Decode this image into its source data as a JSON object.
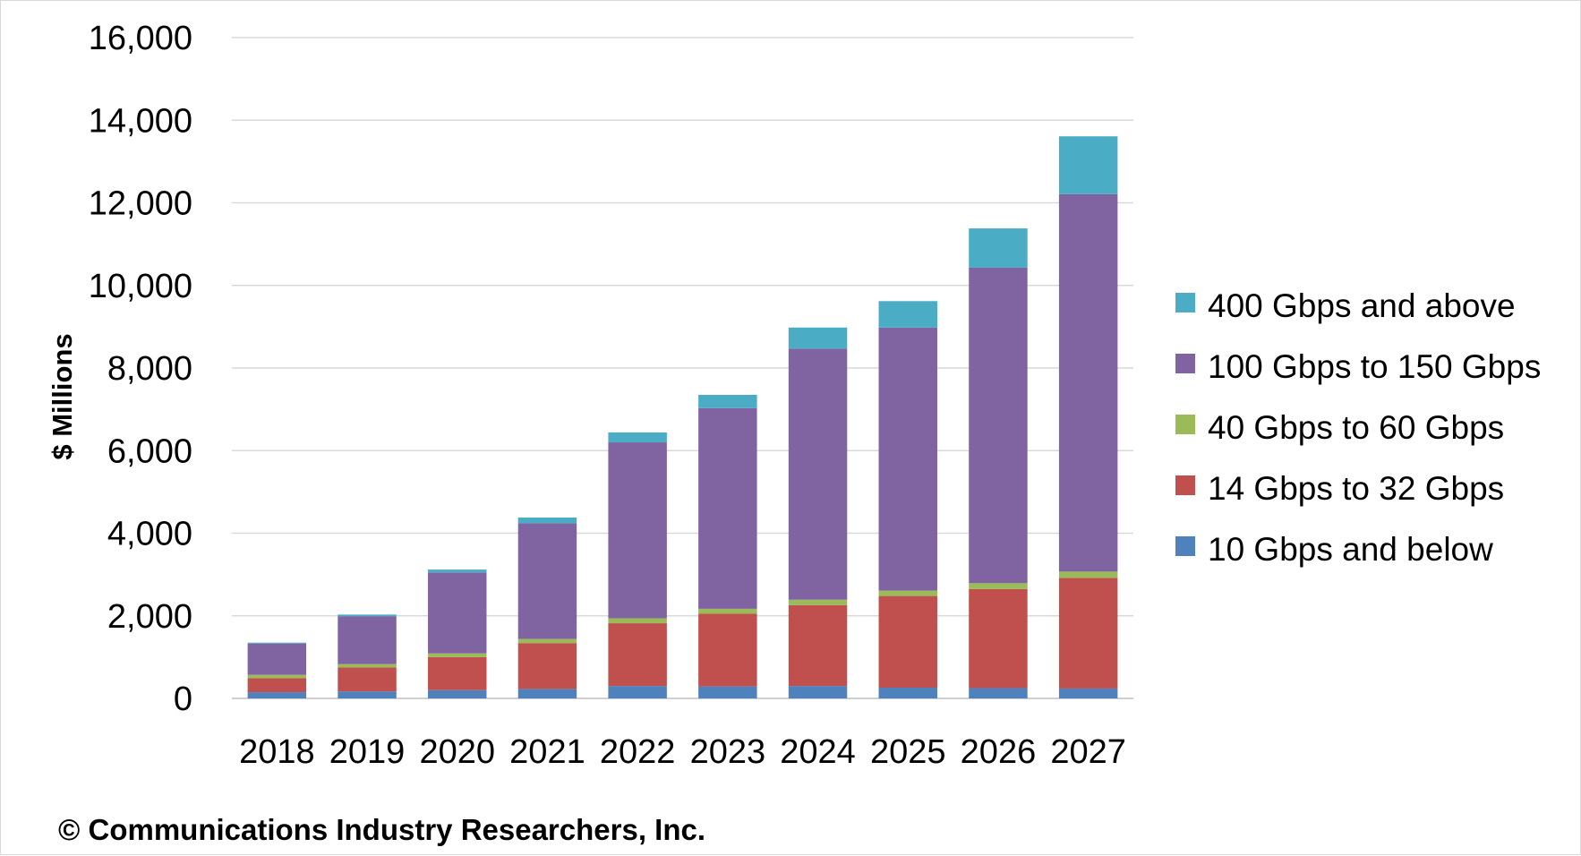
{
  "chart_data": {
    "type": "bar",
    "stacked": true,
    "ylabel": "$ Millions",
    "ylim": [
      0,
      16000
    ],
    "yticks": [
      0,
      2000,
      4000,
      6000,
      8000,
      10000,
      12000,
      14000,
      16000
    ],
    "ytick_labels": [
      "0",
      "2,000",
      "4,000",
      "6,000",
      "8,000",
      "10,000",
      "12,000",
      "14,000",
      "16,000"
    ],
    "grid": true,
    "legend_position": "right",
    "categories": [
      "2018",
      "2019",
      "2020",
      "2021",
      "2022",
      "2023",
      "2024",
      "2025",
      "2026",
      "2027"
    ],
    "series": [
      {
        "name": "10 Gbps and below",
        "color": "#4F81BD",
        "values": [
          150,
          170,
          200,
          230,
          300,
          290,
          300,
          260,
          250,
          240
        ]
      },
      {
        "name": "14 Gbps to 32 Gbps",
        "color": "#C0504D",
        "values": [
          340,
          580,
          800,
          1110,
          1520,
          1760,
          1960,
          2220,
          2400,
          2680
        ]
      },
      {
        "name": "40 Gbps to 60 Gbps",
        "color": "#9BBB59",
        "values": [
          80,
          80,
          90,
          100,
          120,
          120,
          130,
          130,
          140,
          150
        ]
      },
      {
        "name": "100 Gbps to 150 Gbps",
        "color": "#8064A2",
        "values": [
          760,
          1160,
          1960,
          2800,
          4260,
          4860,
          6080,
          6370,
          7640,
          9140
        ]
      },
      {
        "name": "400 Gbps and above",
        "color": "#4BACC6",
        "values": [
          20,
          40,
          70,
          140,
          240,
          320,
          510,
          640,
          950,
          1400
        ]
      }
    ],
    "legend_order": [
      4,
      3,
      2,
      1,
      0
    ]
  },
  "footer": {
    "copyright": "© Communications Industry Researchers, Inc."
  }
}
